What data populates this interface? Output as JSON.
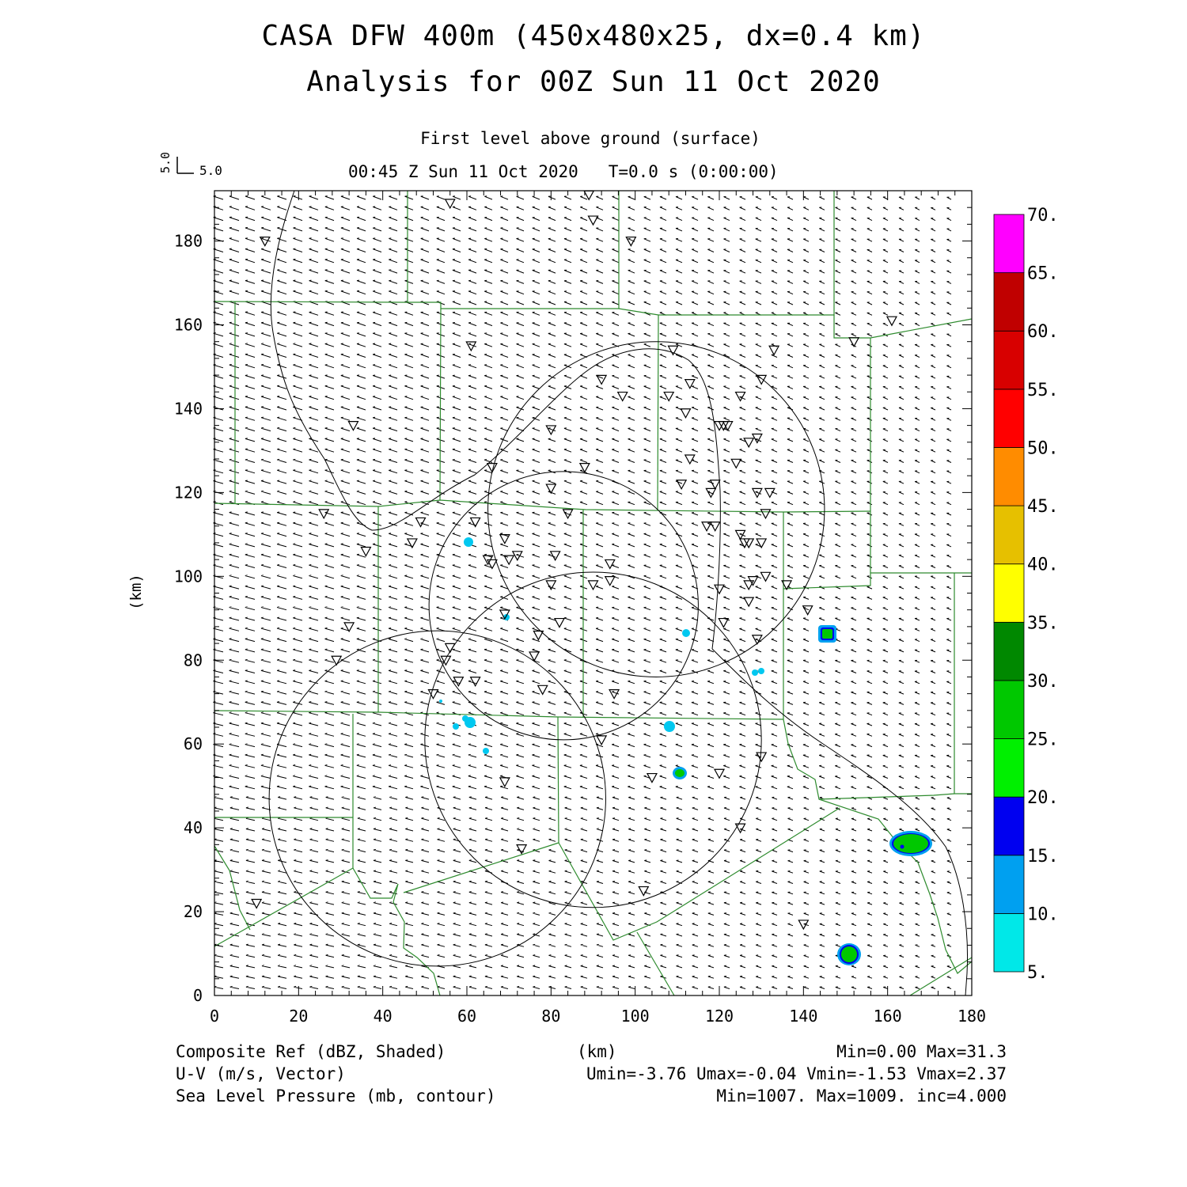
{
  "header": {
    "title_line1": "CASA DFW 400m (450x480x25, dx=0.4 km)",
    "title_line2": "Analysis for 00Z Sun 11 Oct 2020",
    "subtitle": "First level above ground (surface)",
    "valid_time": "00:45 Z Sun 11 Oct 2020",
    "run_time": "T=0.0 s (0:00:00)",
    "vector_scale_x": "5.0",
    "vector_scale_y": "5.0"
  },
  "axes": {
    "x_ticks": [
      "0",
      "20",
      "40",
      "60",
      "80",
      "100",
      "120",
      "140",
      "160",
      "180"
    ],
    "y_ticks": [
      "0",
      "20",
      "40",
      "60",
      "80",
      "100",
      "120",
      "140",
      "160",
      "180"
    ],
    "x_label": "(km)",
    "y_label": "(km)",
    "x_range": [
      0,
      180
    ],
    "y_range": [
      0,
      192
    ]
  },
  "colorbar": {
    "labels": [
      "5.",
      "10.",
      "15.",
      "20.",
      "25.",
      "30.",
      "35.",
      "40.",
      "45.",
      "50.",
      "55.",
      "60.",
      "65.",
      "70."
    ],
    "colors": [
      "#00e8e8",
      "#00a0f0",
      "#0000f0",
      "#00f000",
      "#00c800",
      "#008800",
      "#ffff00",
      "#e6c000",
      "#ff8c00",
      "#ff0000",
      "#d80000",
      "#c00000",
      "#ff00ff"
    ]
  },
  "footer": {
    "field1_name": "Composite Ref (dBZ, Shaded)",
    "field1_stats": "Min=0.00 Max=31.3",
    "field2_name": "U-V (m/s, Vector)",
    "field2_stats": "Umin=-3.76 Umax=-0.04 Vmin=-1.53 Vmax=2.37",
    "field3_name": "Sea Level Pressure (mb, contour)",
    "field3_stats": "Min=1007. Max=1009. inc=4.000"
  },
  "map_data": {
    "radar_range_circles_km": [
      {
        "center": [
          83,
          93
        ],
        "radius": 32
      },
      {
        "center": [
          90,
          61
        ],
        "radius": 40
      },
      {
        "center": [
          53,
          47
        ],
        "radius": 40
      },
      {
        "center": [
          105,
          116
        ],
        "radius": 40
      }
    ],
    "stations_km": [
      [
        56,
        189
      ],
      [
        89,
        191
      ],
      [
        90,
        185
      ],
      [
        99,
        180
      ],
      [
        12,
        180
      ],
      [
        61,
        155
      ],
      [
        152,
        156
      ],
      [
        161,
        161
      ],
      [
        33,
        136
      ],
      [
        109,
        154
      ],
      [
        133,
        154
      ],
      [
        113,
        146
      ],
      [
        130,
        147
      ],
      [
        125,
        143
      ],
      [
        92,
        147
      ],
      [
        97,
        143
      ],
      [
        108,
        143
      ],
      [
        80,
        135
      ],
      [
        112,
        139
      ],
      [
        120,
        136
      ],
      [
        122,
        136
      ],
      [
        121,
        136
      ],
      [
        124,
        127
      ],
      [
        127,
        132
      ],
      [
        129,
        133
      ],
      [
        113,
        128
      ],
      [
        66,
        126
      ],
      [
        88,
        126
      ],
      [
        111,
        122
      ],
      [
        80,
        121
      ],
      [
        119,
        122
      ],
      [
        118,
        120
      ],
      [
        129,
        120
      ],
      [
        132,
        120
      ],
      [
        84,
        115
      ],
      [
        26,
        115
      ],
      [
        49,
        113
      ],
      [
        62,
        113
      ],
      [
        131,
        115
      ],
      [
        47,
        108
      ],
      [
        65,
        104
      ],
      [
        69,
        109
      ],
      [
        66,
        103
      ],
      [
        70,
        104
      ],
      [
        72,
        105
      ],
      [
        81,
        105
      ],
      [
        36,
        106
      ],
      [
        117,
        112
      ],
      [
        119,
        112
      ],
      [
        125,
        110
      ],
      [
        126,
        108
      ],
      [
        127,
        108
      ],
      [
        130,
        108
      ],
      [
        131,
        100
      ],
      [
        80,
        98
      ],
      [
        90,
        98
      ],
      [
        94,
        99
      ],
      [
        94,
        103
      ],
      [
        120,
        97
      ],
      [
        127,
        98
      ],
      [
        127,
        94
      ],
      [
        128,
        99
      ],
      [
        136,
        98
      ],
      [
        141,
        92
      ],
      [
        69,
        91
      ],
      [
        82,
        89
      ],
      [
        121,
        89
      ],
      [
        32,
        88
      ],
      [
        77,
        86
      ],
      [
        129,
        85
      ],
      [
        76,
        81
      ],
      [
        56,
        83
      ],
      [
        55,
        80
      ],
      [
        29,
        80
      ],
      [
        58,
        75
      ],
      [
        62,
        75
      ],
      [
        78,
        73
      ],
      [
        95,
        72
      ],
      [
        52,
        72
      ],
      [
        92,
        61
      ],
      [
        130,
        57
      ],
      [
        69,
        51
      ],
      [
        104,
        52
      ],
      [
        120,
        53
      ],
      [
        125,
        40
      ],
      [
        73,
        35
      ],
      [
        102,
        25
      ],
      [
        10,
        22
      ],
      [
        140,
        17
      ]
    ]
  }
}
